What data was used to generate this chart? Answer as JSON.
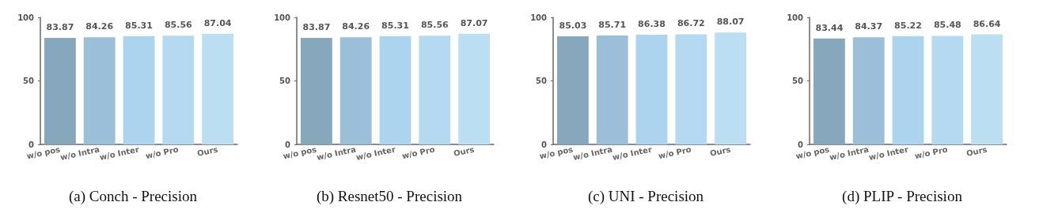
{
  "chart_data": [
    {
      "type": "bar",
      "title": "(a) Conch - Precision",
      "categories": [
        "w/o pos",
        "w/o Intra",
        "w/o Inter",
        "w/o Pro",
        "Ours"
      ],
      "values": [
        83.87,
        84.26,
        85.31,
        85.56,
        87.04
      ],
      "colors": [
        "#87a7bd",
        "#9bbfd8",
        "#acd4ee",
        "#b4d9f1",
        "#bcdef3"
      ],
      "ylim": [
        0,
        100
      ],
      "yticks": [
        0,
        50,
        100
      ],
      "data_labels": true
    },
    {
      "type": "bar",
      "title": "(b) Resnet50 - Precision",
      "categories": [
        "w/o pos",
        "w/o Intra",
        "w/o Inter",
        "w/o Pro",
        "Ours"
      ],
      "values": [
        83.87,
        84.26,
        85.31,
        85.56,
        87.07
      ],
      "colors": [
        "#87a7bd",
        "#9bbfd8",
        "#acd4ee",
        "#b4d9f1",
        "#bcdef3"
      ],
      "ylim": [
        0,
        100
      ],
      "yticks": [
        0,
        50,
        100
      ],
      "data_labels": true
    },
    {
      "type": "bar",
      "title": "(c) UNI - Precision",
      "categories": [
        "w/o pos",
        "w/o Intra",
        "w/o Inter",
        "w/o Pro",
        "Ours"
      ],
      "values": [
        85.03,
        85.71,
        86.38,
        86.72,
        88.07
      ],
      "colors": [
        "#87a7bd",
        "#9bbfd8",
        "#acd4ee",
        "#b4d9f1",
        "#bcdef3"
      ],
      "ylim": [
        0,
        100
      ],
      "yticks": [
        0,
        50,
        100
      ],
      "data_labels": true
    },
    {
      "type": "bar",
      "title": "(d) PLIP - Precision",
      "categories": [
        "w/o pos",
        "w/o Intra",
        "w/o Inter",
        "w/o Pro",
        "Ours"
      ],
      "values": [
        83.44,
        84.37,
        85.22,
        85.48,
        86.64
      ],
      "colors": [
        "#87a7bd",
        "#9bbfd8",
        "#acd4ee",
        "#b4d9f1",
        "#bcdef3"
      ],
      "ylim": [
        0,
        100
      ],
      "yticks": [
        0,
        50,
        100
      ],
      "data_labels": true
    }
  ]
}
